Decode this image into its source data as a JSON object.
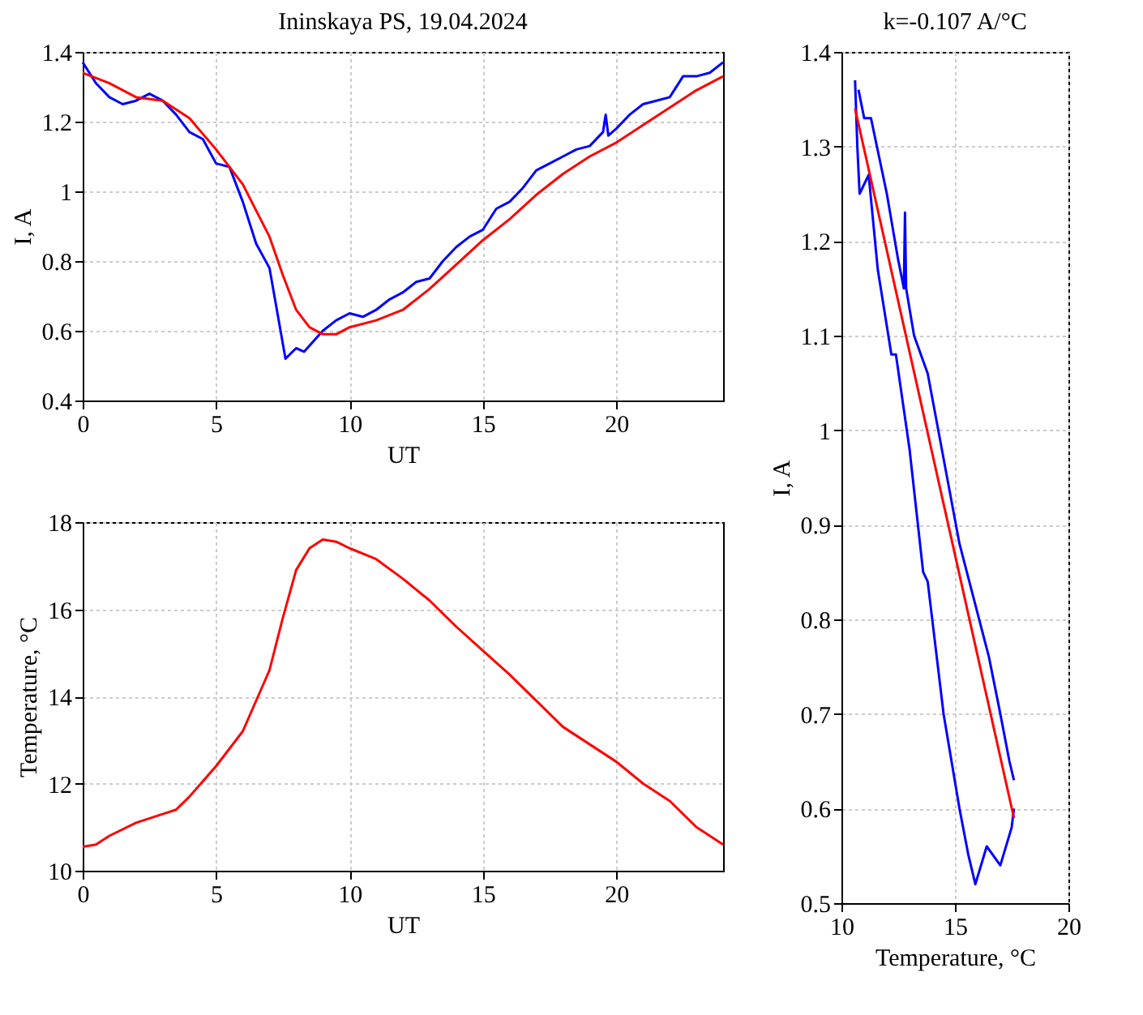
{
  "chart_data": [
    {
      "type": "line",
      "title": "Ininskaya PS, 19.04.2024",
      "xlabel": "UT",
      "ylabel": "I, A",
      "xlim": [
        0,
        24
      ],
      "xticks": [
        0,
        5,
        10,
        15,
        20
      ],
      "ylim": [
        0.4,
        1.4
      ],
      "yticks": [
        0.4,
        0.6,
        0.8,
        1,
        1.2,
        1.4
      ],
      "grid": true,
      "series": [
        {
          "color": "#0000ff",
          "x": [
            0,
            0.5,
            1,
            1.5,
            2,
            2.5,
            3,
            3.5,
            4,
            4.5,
            5,
            5.5,
            6,
            6.5,
            7,
            7.3,
            7.6,
            8,
            8.3,
            9,
            9.5,
            10,
            10.5,
            11,
            11.5,
            12,
            12.5,
            13,
            13.5,
            14,
            14.5,
            15,
            15.5,
            16,
            16.5,
            17,
            17.5,
            18,
            18.5,
            19,
            19.5,
            19.6,
            19.7,
            20,
            20.5,
            21,
            21.5,
            22,
            22.5,
            23,
            23.5,
            24
          ],
          "values": [
            1.37,
            1.31,
            1.27,
            1.25,
            1.26,
            1.28,
            1.26,
            1.22,
            1.17,
            1.15,
            1.08,
            1.07,
            0.97,
            0.85,
            0.78,
            0.65,
            0.52,
            0.55,
            0.54,
            0.6,
            0.63,
            0.65,
            0.64,
            0.66,
            0.69,
            0.71,
            0.74,
            0.75,
            0.8,
            0.84,
            0.87,
            0.89,
            0.95,
            0.97,
            1.01,
            1.06,
            1.08,
            1.1,
            1.12,
            1.13,
            1.17,
            1.22,
            1.16,
            1.18,
            1.22,
            1.25,
            1.26,
            1.27,
            1.33,
            1.33,
            1.34,
            1.37
          ]
        },
        {
          "color": "#ff0000",
          "x": [
            0,
            1,
            2,
            3,
            4,
            5,
            6,
            7,
            7.5,
            8,
            8.5,
            9,
            9.5,
            10,
            11,
            12,
            13,
            14,
            15,
            16,
            17,
            18,
            19,
            20,
            21,
            22,
            23,
            24
          ],
          "values": [
            1.34,
            1.31,
            1.27,
            1.26,
            1.21,
            1.12,
            1.02,
            0.87,
            0.76,
            0.66,
            0.61,
            0.59,
            0.59,
            0.61,
            0.63,
            0.66,
            0.72,
            0.79,
            0.86,
            0.92,
            0.99,
            1.05,
            1.1,
            1.14,
            1.19,
            1.24,
            1.29,
            1.33
          ]
        }
      ]
    },
    {
      "type": "line",
      "xlabel": "UT",
      "ylabel": "Temperature, °C",
      "xlim": [
        0,
        24
      ],
      "xticks": [
        0,
        5,
        10,
        15,
        20
      ],
      "ylim": [
        10,
        18
      ],
      "yticks": [
        10,
        12,
        14,
        16,
        18
      ],
      "grid": true,
      "series": [
        {
          "color": "#ff0000",
          "x": [
            0,
            0.5,
            1,
            2,
            3,
            3.5,
            4,
            5,
            6,
            7,
            7.5,
            8,
            8.5,
            9,
            9.5,
            10,
            11,
            12,
            13,
            14,
            15,
            16,
            17,
            18,
            19,
            20,
            21,
            22,
            23,
            24
          ],
          "values": [
            10.55,
            10.6,
            10.8,
            11.1,
            11.3,
            11.4,
            11.7,
            12.4,
            13.2,
            14.6,
            15.8,
            16.9,
            17.4,
            17.6,
            17.55,
            17.4,
            17.15,
            16.7,
            16.2,
            15.6,
            15.05,
            14.5,
            13.9,
            13.3,
            12.9,
            12.5,
            12,
            11.6,
            11,
            10.6
          ]
        }
      ]
    },
    {
      "type": "line",
      "title": "k=-0.107 A/°C",
      "xlabel": "Temperature, °C",
      "ylabel": "I, A",
      "xlim": [
        10,
        20
      ],
      "xticks": [
        10,
        15,
        20
      ],
      "ylim": [
        0.5,
        1.4
      ],
      "yticks": [
        0.5,
        0.6,
        0.7,
        0.8,
        0.9,
        1,
        1.1,
        1.2,
        1.3,
        1.4
      ],
      "grid": true,
      "series": [
        {
          "color": "#0000ff",
          "x": [
            10.6,
            10.7,
            10.8,
            11.2,
            11.6,
            12.2,
            12.4,
            13.0,
            13.6,
            13.8,
            14.5,
            15.2,
            15.6,
            15.9,
            16.4,
            17.0,
            17.5,
            17.6
          ],
          "values": [
            1.37,
            1.3,
            1.25,
            1.27,
            1.17,
            1.08,
            1.08,
            0.98,
            0.85,
            0.84,
            0.7,
            0.6,
            0.55,
            0.52,
            0.56,
            0.54,
            0.58,
            0.6
          ]
        },
        {
          "color": "#0000ff",
          "x": [
            10.75,
            11.0,
            11.3,
            12.0,
            12.5,
            12.75,
            12.8,
            12.85,
            13.2,
            13.8,
            14.5,
            15.2,
            16.5,
            17.0,
            17.4,
            17.6
          ],
          "values": [
            1.36,
            1.33,
            1.33,
            1.25,
            1.18,
            1.15,
            1.23,
            1.15,
            1.1,
            1.06,
            0.97,
            0.88,
            0.76,
            0.7,
            0.65,
            0.63
          ]
        },
        {
          "color": "#ff0000",
          "x": [
            10.6,
            17.6
          ],
          "values": [
            1.34,
            0.59
          ]
        }
      ]
    }
  ]
}
